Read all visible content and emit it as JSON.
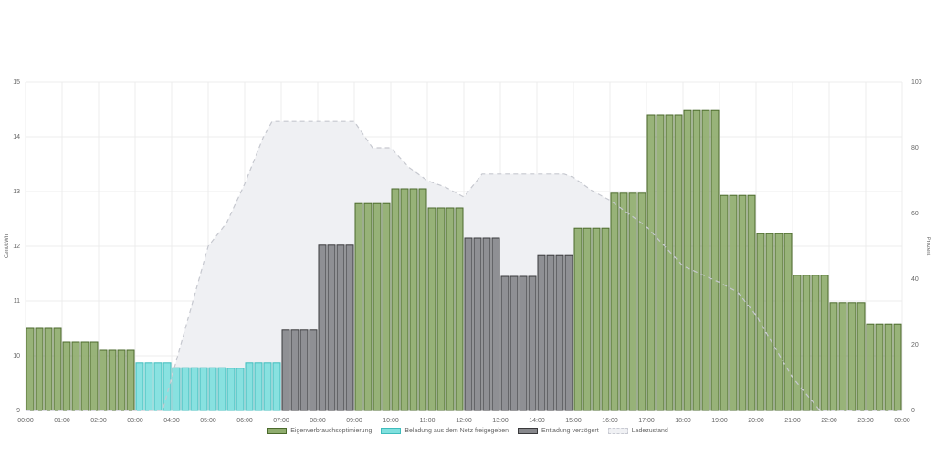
{
  "chart_data": {
    "type": "bar",
    "title": "",
    "ylabel": "Cent/kWh",
    "y2label": "Prozent",
    "ylim": [
      9,
      15
    ],
    "y2lim": [
      0,
      100
    ],
    "yticks": [
      "9",
      "10",
      "11",
      "12",
      "13",
      "14",
      "15"
    ],
    "y2ticks": [
      "0",
      "20",
      "40",
      "60",
      "80",
      "100"
    ],
    "xticks": [
      "00:00",
      "01:00",
      "02:00",
      "03:00",
      "04:00",
      "05:00",
      "06:00",
      "07:00",
      "08:00",
      "09:00",
      "10:00",
      "11:00",
      "12:00",
      "13:00",
      "14:00",
      "15:00",
      "16:00",
      "17:00",
      "18:00",
      "19:00",
      "20:00",
      "21:00",
      "22:00",
      "23:00",
      "00:00"
    ],
    "interval": "15 min",
    "values": [
      10.5,
      10.5,
      10.5,
      10.5,
      10.25,
      10.25,
      10.25,
      10.25,
      10.1,
      10.1,
      10.1,
      10.1,
      9.87,
      9.87,
      9.87,
      9.87,
      9.78,
      9.78,
      9.78,
      9.78,
      9.78,
      9.78,
      9.77,
      9.77,
      9.87,
      9.87,
      9.87,
      9.87,
      10.47,
      10.47,
      10.47,
      10.47,
      12.02,
      12.02,
      12.02,
      12.02,
      12.78,
      12.78,
      12.78,
      12.78,
      13.05,
      13.05,
      13.05,
      13.05,
      12.7,
      12.7,
      12.7,
      12.7,
      12.15,
      12.15,
      12.15,
      12.15,
      11.45,
      11.45,
      11.45,
      11.45,
      11.83,
      11.83,
      11.83,
      11.83,
      12.33,
      12.33,
      12.33,
      12.33,
      12.97,
      12.97,
      12.97,
      12.97,
      14.4,
      14.4,
      14.4,
      14.4,
      14.48,
      14.48,
      14.48,
      14.48,
      12.93,
      12.93,
      12.93,
      12.93,
      12.23,
      12.23,
      12.23,
      12.23,
      11.47,
      11.47,
      11.47,
      11.47,
      10.97,
      10.97,
      10.97,
      10.97,
      10.58,
      10.58,
      10.58,
      10.58
    ],
    "hour_mode": [
      "g",
      "g",
      "g",
      "c",
      "c",
      "c",
      "c",
      "d",
      "d",
      "g",
      "g",
      "g",
      "d",
      "d",
      "d",
      "g",
      "g",
      "g",
      "g",
      "g",
      "g",
      "g",
      "g",
      "g"
    ],
    "series": [
      {
        "key": "g",
        "name": "Eigenverbrauchsoptimierung",
        "fill": "#8fac6e",
        "stroke": "#4b6a2c"
      },
      {
        "key": "c",
        "name": "Beladung aus dem Netz freigegeben",
        "fill": "#7fe0de",
        "stroke": "#3fbcbc"
      },
      {
        "key": "d",
        "name": "Entladung verzögert",
        "fill": "#87888c",
        "stroke": "#3a3a3c"
      }
    ],
    "line": {
      "name": "Ladezustand",
      "axis": "right",
      "points": [
        [
          0,
          0
        ],
        [
          3.75,
          0
        ],
        [
          4,
          10
        ],
        [
          4.5,
          30
        ],
        [
          5,
          50
        ],
        [
          5.5,
          57
        ],
        [
          6,
          69
        ],
        [
          6.5,
          83
        ],
        [
          6.75,
          88
        ],
        [
          7,
          88
        ],
        [
          9,
          88
        ],
        [
          9.5,
          80
        ],
        [
          10,
          80
        ],
        [
          10.5,
          74
        ],
        [
          11,
          70
        ],
        [
          11.5,
          68
        ],
        [
          12,
          65
        ],
        [
          12.5,
          72
        ],
        [
          14.75,
          72
        ],
        [
          15,
          71
        ],
        [
          15.5,
          67
        ],
        [
          16,
          64
        ],
        [
          17,
          56
        ],
        [
          18,
          44
        ],
        [
          19,
          39
        ],
        [
          19.5,
          36
        ],
        [
          20,
          29
        ],
        [
          21,
          10
        ],
        [
          21.75,
          0
        ],
        [
          24,
          0
        ]
      ]
    }
  }
}
